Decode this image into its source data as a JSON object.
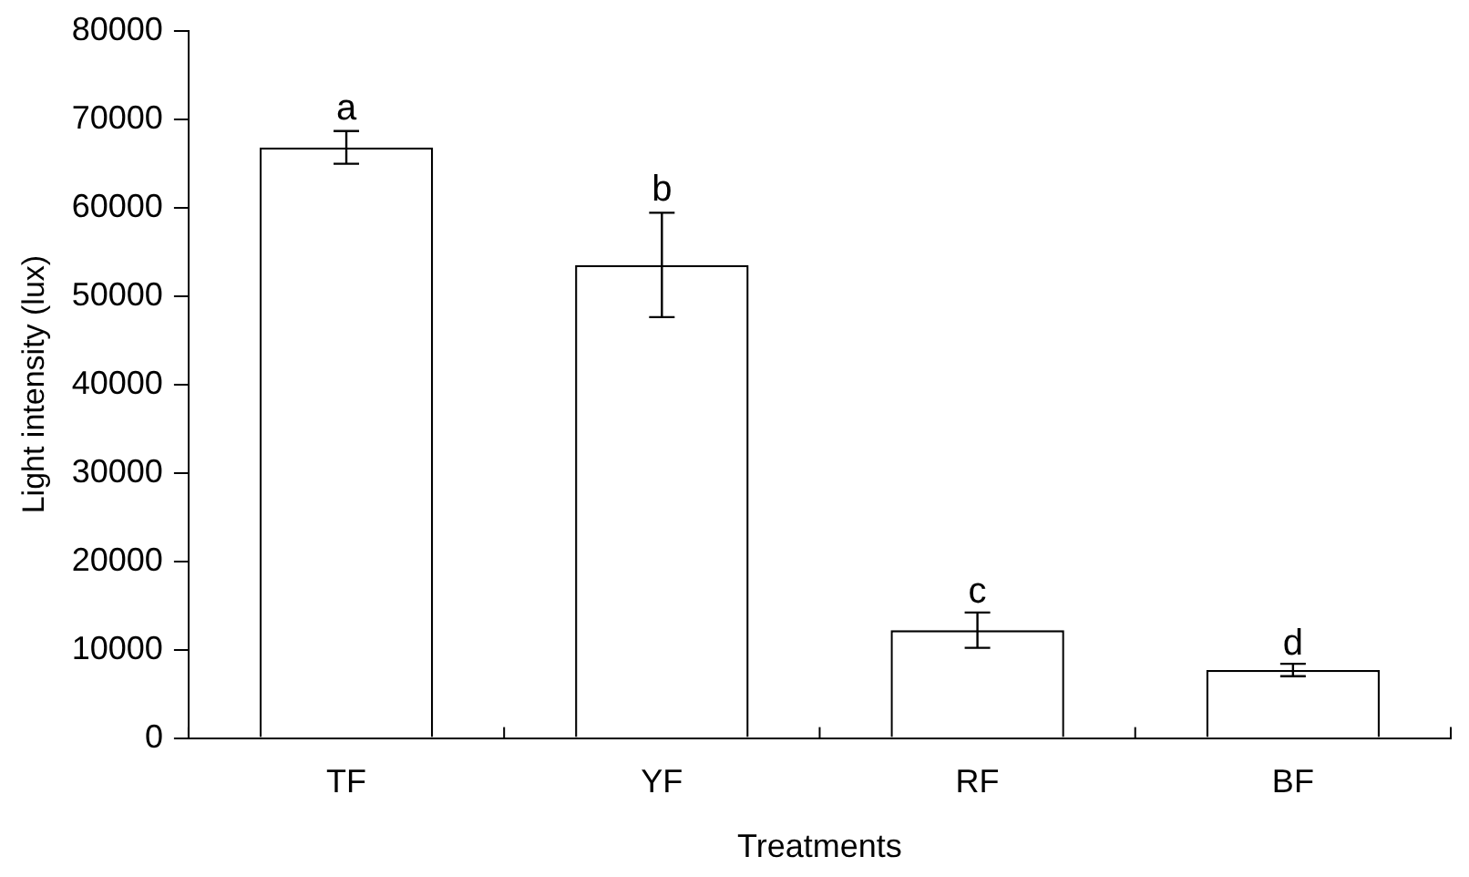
{
  "chart_data": {
    "type": "bar",
    "xlabel": "Treatments",
    "ylabel": "Light intensity (lux)",
    "categories": [
      "TF",
      "YF",
      "RF",
      "BF"
    ],
    "values": [
      66800,
      53500,
      12200,
      7700
    ],
    "errors": [
      1850,
      5900,
      2000,
      700
    ],
    "color": "#ffffff",
    "ylim": [
      0,
      80000
    ],
    "yticks": [
      0,
      10000,
      20000,
      30000,
      40000,
      50000,
      60000,
      70000,
      80000
    ],
    "grid": false,
    "legend": false,
    "annotations": [
      {
        "text": "a",
        "x": "TF",
        "y": 68600
      },
      {
        "text": "b",
        "x": "YF",
        "y": 59400
      },
      {
        "text": "c",
        "x": "RF",
        "y": 14000
      },
      {
        "text": "d",
        "x": "BF",
        "y": 8100
      }
    ]
  }
}
